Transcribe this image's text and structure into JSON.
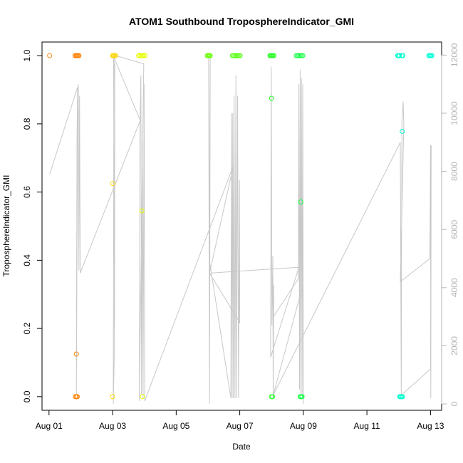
{
  "chart_data": {
    "type": "scatter",
    "title": "ATOM1 Southbound TroposphereIndicator_GMI",
    "xlabel": "Date",
    "ylabel": "TroposphereIndicator_GMI",
    "x_ticks": [
      "Aug 01",
      "Aug 03",
      "Aug 05",
      "Aug 07",
      "Aug 09",
      "Aug 11",
      "Aug 13"
    ],
    "x_tick_days": [
      1,
      3,
      5,
      7,
      9,
      11,
      13
    ],
    "xlim": [
      0.78,
      13.35
    ],
    "y_ticks": [
      "0.0",
      "0.2",
      "0.4",
      "0.6",
      "0.8",
      "1.0"
    ],
    "y_tick_values": [
      0,
      0.2,
      0.4,
      0.6,
      0.8,
      1.0
    ],
    "ylim": [
      -0.04,
      1.04
    ],
    "y2_ticks": [
      "0",
      "2000",
      "4000",
      "6000",
      "8000",
      "10000",
      "12000"
    ],
    "y2_tick_values": [
      0,
      2000,
      4000,
      6000,
      8000,
      10000,
      12000
    ],
    "y2lim": [
      -220,
      12450
    ],
    "grid": false,
    "legend": "none",
    "point_colors": {
      "Aug01": "#ff8c1a",
      "Aug02": "#ff7f00",
      "Aug03": "#ffd700",
      "Aug04": "#e6ff00",
      "Aug06": "#66ff00",
      "Aug07": "#55ff10",
      "Aug08": "#22ff22",
      "Aug09": "#11ff44",
      "Aug12": "#00ffcc",
      "Aug13": "#00ffd5"
    },
    "line_color": "#c8c8c8",
    "series": [
      {
        "points": [
          {
            "x": 1.02,
            "y": 1.0,
            "c": "Aug01"
          },
          {
            "x": 1.82,
            "y": 1.0,
            "c": "Aug02"
          },
          {
            "x": 1.85,
            "y": 1.0,
            "c": "Aug02"
          },
          {
            "x": 1.88,
            "y": 1.0,
            "c": "Aug02"
          },
          {
            "x": 1.91,
            "y": 1.0,
            "c": "Aug02"
          },
          {
            "x": 1.94,
            "y": 1.0,
            "c": "Aug02"
          },
          {
            "x": 1.86,
            "y": 0.125,
            "c": "Aug02"
          },
          {
            "x": 1.83,
            "y": 0.0,
            "c": "Aug02"
          },
          {
            "x": 1.86,
            "y": 0.0,
            "c": "Aug02"
          },
          {
            "x": 1.89,
            "y": 0.0,
            "c": "Aug02"
          },
          {
            "x": 3.0,
            "y": 1.0,
            "c": "Aug03"
          },
          {
            "x": 3.03,
            "y": 1.0,
            "c": "Aug03"
          },
          {
            "x": 3.06,
            "y": 1.0,
            "c": "Aug03"
          },
          {
            "x": 3.09,
            "y": 1.0,
            "c": "Aug03"
          },
          {
            "x": 3.0,
            "y": 0.625,
            "c": "Aug03"
          },
          {
            "x": 3.0,
            "y": 0.0,
            "c": "Aug03"
          },
          {
            "x": 3.82,
            "y": 1.0,
            "c": "Aug04"
          },
          {
            "x": 3.86,
            "y": 1.0,
            "c": "Aug04"
          },
          {
            "x": 3.9,
            "y": 1.0,
            "c": "Aug04"
          },
          {
            "x": 3.94,
            "y": 1.0,
            "c": "Aug04"
          },
          {
            "x": 3.98,
            "y": 1.0,
            "c": "Aug04"
          },
          {
            "x": 4.02,
            "y": 1.0,
            "c": "Aug04"
          },
          {
            "x": 3.92,
            "y": 0.545,
            "c": "Aug04"
          },
          {
            "x": 3.94,
            "y": 0.0,
            "c": "Aug04"
          },
          {
            "x": 5.98,
            "y": 1.0,
            "c": "Aug06"
          },
          {
            "x": 6.01,
            "y": 1.0,
            "c": "Aug06"
          },
          {
            "x": 6.04,
            "y": 1.0,
            "c": "Aug06"
          },
          {
            "x": 6.07,
            "y": 1.0,
            "c": "Aug06"
          },
          {
            "x": 6.77,
            "y": 1.0,
            "c": "Aug07"
          },
          {
            "x": 6.81,
            "y": 1.0,
            "c": "Aug07"
          },
          {
            "x": 6.85,
            "y": 1.0,
            "c": "Aug07"
          },
          {
            "x": 6.89,
            "y": 1.0,
            "c": "Aug07"
          },
          {
            "x": 6.93,
            "y": 1.0,
            "c": "Aug07"
          },
          {
            "x": 6.97,
            "y": 1.0,
            "c": "Aug07"
          },
          {
            "x": 7.01,
            "y": 1.0,
            "c": "Aug07"
          },
          {
            "x": 7.95,
            "y": 1.0,
            "c": "Aug08"
          },
          {
            "x": 7.98,
            "y": 1.0,
            "c": "Aug08"
          },
          {
            "x": 8.01,
            "y": 1.0,
            "c": "Aug08"
          },
          {
            "x": 8.04,
            "y": 1.0,
            "c": "Aug08"
          },
          {
            "x": 8.07,
            "y": 1.0,
            "c": "Aug08"
          },
          {
            "x": 8.0,
            "y": 0.875,
            "c": "Aug08"
          },
          {
            "x": 8.0,
            "y": 0.0,
            "c": "Aug08"
          },
          {
            "x": 8.03,
            "y": 0.0,
            "c": "Aug08"
          },
          {
            "x": 8.78,
            "y": 1.0,
            "c": "Aug09"
          },
          {
            "x": 8.82,
            "y": 1.0,
            "c": "Aug09"
          },
          {
            "x": 8.86,
            "y": 1.0,
            "c": "Aug09"
          },
          {
            "x": 8.9,
            "y": 1.0,
            "c": "Aug09"
          },
          {
            "x": 8.94,
            "y": 1.0,
            "c": "Aug09"
          },
          {
            "x": 8.98,
            "y": 1.0,
            "c": "Aug09"
          },
          {
            "x": 8.92,
            "y": 0.571,
            "c": "Aug09"
          },
          {
            "x": 8.9,
            "y": 0.0,
            "c": "Aug09"
          },
          {
            "x": 8.93,
            "y": 0.0,
            "c": "Aug09"
          },
          {
            "x": 8.96,
            "y": 0.0,
            "c": "Aug09"
          },
          {
            "x": 11.97,
            "y": 1.0,
            "c": "Aug12"
          },
          {
            "x": 12.0,
            "y": 1.0,
            "c": "Aug12"
          },
          {
            "x": 12.03,
            "y": 1.0,
            "c": "Aug12"
          },
          {
            "x": 12.1,
            "y": 1.0,
            "c": "Aug12"
          },
          {
            "x": 12.13,
            "y": 1.0,
            "c": "Aug12"
          },
          {
            "x": 12.11,
            "y": 0.778,
            "c": "Aug12"
          },
          {
            "x": 12.03,
            "y": 0.0,
            "c": "Aug12"
          },
          {
            "x": 12.06,
            "y": 0.0,
            "c": "Aug12"
          },
          {
            "x": 12.09,
            "y": 0.0,
            "c": "Aug12"
          },
          {
            "x": 12.12,
            "y": 0.0,
            "c": "Aug12"
          },
          {
            "x": 12.95,
            "y": 1.0,
            "c": "Aug13"
          },
          {
            "x": 12.98,
            "y": 1.0,
            "c": "Aug13"
          },
          {
            "x": 13.01,
            "y": 1.0,
            "c": "Aug13"
          },
          {
            "x": 13.04,
            "y": 1.0,
            "c": "Aug13"
          }
        ]
      },
      {
        "axis": "right",
        "line": [
          [
            1.02,
            7900
          ],
          [
            1.9,
            10900
          ],
          [
            1.88,
            9200
          ],
          [
            1.86,
            300
          ],
          [
            1.88,
            5200
          ],
          [
            1.9,
            9800
          ],
          [
            1.92,
            11000
          ],
          [
            1.94,
            4600
          ],
          [
            1.96,
            10600
          ],
          [
            1.98,
            4500
          ],
          [
            3.87,
            9750
          ],
          [
            3.03,
            11950
          ],
          [
            3.06,
            2650
          ],
          [
            3.07,
            11700
          ],
          [
            3.05,
            1500
          ],
          [
            3.02,
            0
          ],
          [
            3.04,
            11000
          ],
          [
            3.05,
            12000
          ],
          [
            3.98,
            11700
          ],
          [
            3.84,
            100
          ],
          [
            3.86,
            9500
          ],
          [
            3.89,
            11300
          ],
          [
            3.91,
            300
          ],
          [
            3.94,
            9000
          ],
          [
            3.96,
            200
          ],
          [
            3.99,
            11000
          ],
          [
            4.01,
            100
          ],
          [
            6.8,
            8200
          ],
          [
            6.05,
            4500
          ],
          [
            6.02,
            11950
          ],
          [
            6.05,
            0
          ],
          [
            6.07,
            11950
          ],
          [
            6.05,
            4900
          ],
          [
            6.72,
            200
          ],
          [
            6.74,
            10000
          ],
          [
            6.76,
            200
          ],
          [
            6.78,
            10000
          ],
          [
            6.8,
            200
          ],
          [
            6.82,
            10600
          ],
          [
            6.85,
            200
          ],
          [
            6.88,
            11300
          ],
          [
            6.9,
            200
          ],
          [
            6.93,
            10600
          ],
          [
            6.96,
            200
          ],
          [
            6.99,
            7700
          ],
          [
            7.0,
            2800
          ],
          [
            6.05,
            4500
          ],
          [
            8.86,
            4700
          ],
          [
            7.97,
            1600
          ],
          [
            7.99,
            11600
          ],
          [
            8.01,
            2700
          ],
          [
            8.04,
            5100
          ],
          [
            8.05,
            200
          ],
          [
            8.07,
            4100
          ],
          [
            8.06,
            3000
          ],
          [
            8.84,
            4300
          ],
          [
            8.86,
            11000
          ],
          [
            8.88,
            500
          ],
          [
            8.9,
            11500
          ],
          [
            8.92,
            300
          ],
          [
            8.94,
            11200
          ],
          [
            8.96,
            300
          ],
          [
            8.98,
            11000
          ],
          [
            9.0,
            0
          ],
          [
            8.99,
            4100
          ],
          [
            8.05,
            300
          ],
          [
            12.05,
            9000
          ],
          [
            12.08,
            300
          ],
          [
            12.1,
            9700
          ],
          [
            12.14,
            10400
          ],
          [
            12.16,
            9600
          ],
          [
            12.05,
            4200
          ],
          [
            12.98,
            5000
          ],
          [
            13.0,
            8900
          ],
          [
            13.01,
            200
          ],
          [
            13.02,
            8900
          ],
          [
            13.0,
            1200
          ],
          [
            12.08,
            300
          ]
        ]
      }
    ]
  }
}
